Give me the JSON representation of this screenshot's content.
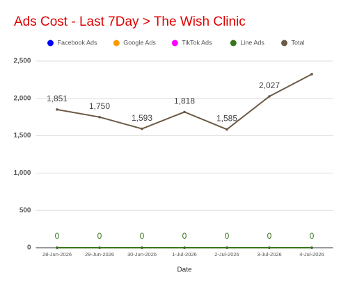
{
  "chart_data": {
    "type": "line",
    "title": "Ads Cost - Last 7Day > The Wish Clinic",
    "x_label": "Date",
    "categories": [
      "28-Jun-2026",
      "29-Jun-2026",
      "30-Jun-2026",
      "1-Jul-2026",
      "2-Jul-2026",
      "3-Jul-2026",
      "4-Jul-2026"
    ],
    "series": [
      {
        "name": "Facebook Ads",
        "color": "#0000ff",
        "values": [
          0,
          0,
          0,
          0,
          0,
          0,
          0
        ]
      },
      {
        "name": "Google Ads",
        "color": "#ff9900",
        "values": [
          0,
          0,
          0,
          0,
          0,
          0,
          0
        ]
      },
      {
        "name": "TikTok Ads",
        "color": "#ff00ff",
        "values": [
          0,
          0,
          0,
          0,
          0,
          0,
          0
        ]
      },
      {
        "name": "Line Ads",
        "color": "#38761d",
        "values": [
          0,
          0,
          0,
          0,
          0,
          0,
          0
        ],
        "show_labels": true
      },
      {
        "name": "Total",
        "color": "#6b5b45",
        "values": [
          1851,
          1750,
          1593,
          1818,
          1585,
          2027,
          2325
        ],
        "value_labels": [
          "1,851",
          "1,750",
          "1,593",
          "1,818",
          "1,585",
          "2,027",
          null
        ]
      }
    ],
    "ylim": [
      0,
      2500
    ],
    "yticks": [
      0,
      500,
      {
        "value": 1000,
        "label": "1,000"
      },
      {
        "value": 1500,
        "label": "1,500"
      },
      {
        "value": 2000,
        "label": "2,000"
      },
      {
        "value": 2500,
        "label": "2,500"
      }
    ],
    "grid": true,
    "legend": "top"
  }
}
